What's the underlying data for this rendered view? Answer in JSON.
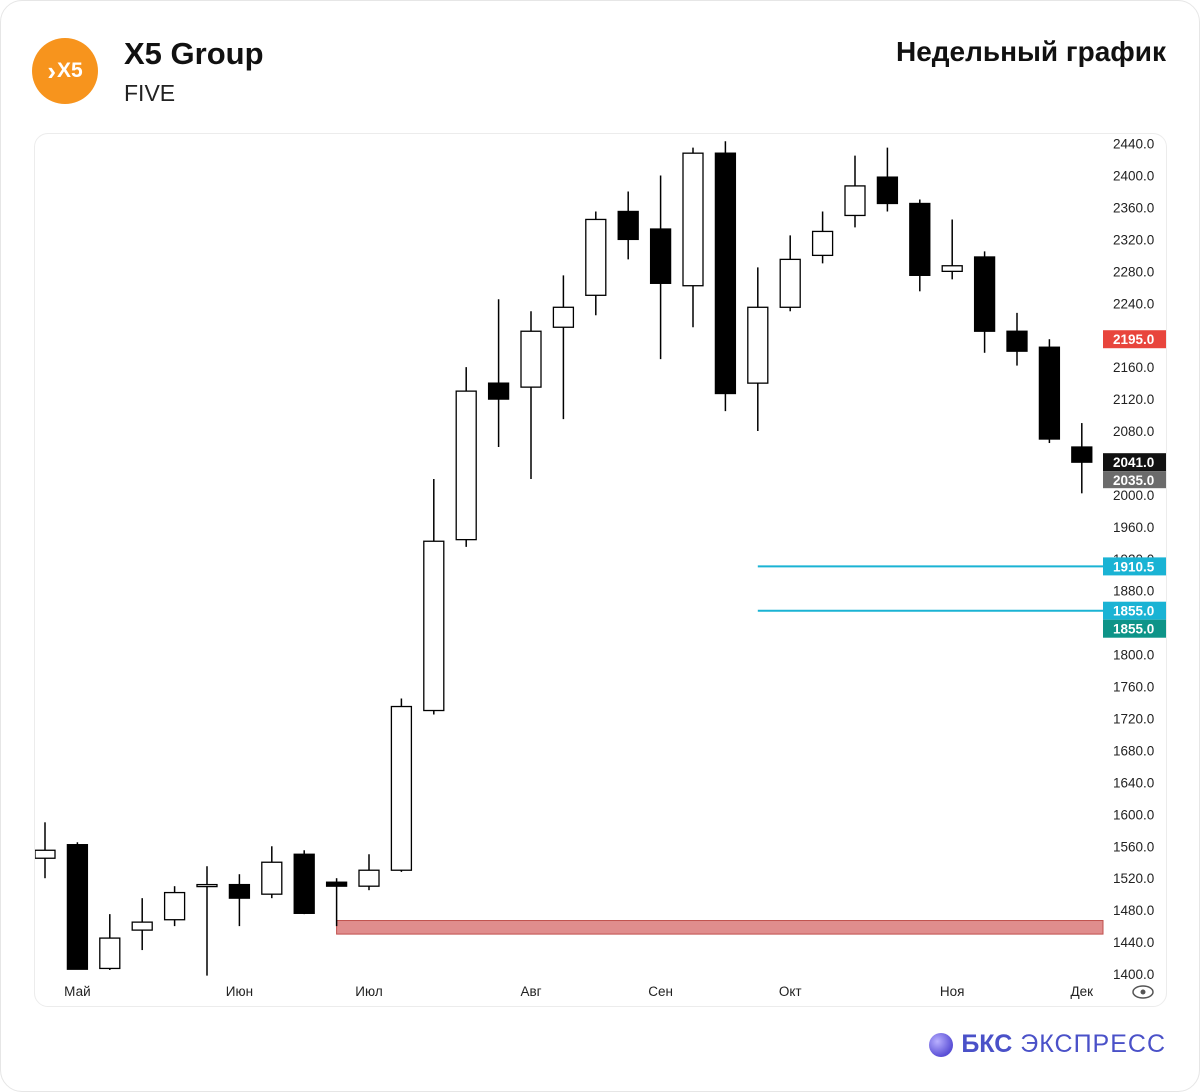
{
  "header": {
    "logo_text": "X5",
    "company": "X5 Group",
    "ticker": "FIVE",
    "chart_title": "Недельный график"
  },
  "footer": {
    "brand_bold": "БКС",
    "brand_rest": "ЭКСПРЕСС",
    "brand_color": "#4a51c8"
  },
  "colors": {
    "logo": "#f7941d",
    "resistance": "#e8453c",
    "level_lines": "#1ab3d4",
    "support_zone": "#e08d8d",
    "current_label": "#111111",
    "prev_label": "#6b6b6b",
    "level_label_teal": "#0e9488"
  },
  "chart_data": {
    "type": "candlestick",
    "title": "Недельный график",
    "y_ticks": [
      2440,
      2400,
      2360,
      2320,
      2280,
      2240,
      2160,
      2120,
      2080,
      2000,
      1960,
      1920,
      1880,
      1800,
      1760,
      1720,
      1680,
      1640,
      1600,
      1560,
      1520,
      1480,
      1440,
      1400
    ],
    "ylim": [
      1385,
      2447
    ],
    "x_labels": [
      {
        "label": "Май",
        "index": 1
      },
      {
        "label": "Июн",
        "index": 6
      },
      {
        "label": "Июл",
        "index": 10
      },
      {
        "label": "Авг",
        "index": 15
      },
      {
        "label": "Сен",
        "index": 19
      },
      {
        "label": "Окт",
        "index": 23
      },
      {
        "label": "Ноя",
        "index": 28
      },
      {
        "label": "Дек",
        "index": 32
      }
    ],
    "candles": [
      {
        "o": 1545,
        "h": 1590,
        "l": 1520,
        "c": 1555
      },
      {
        "o": 1562,
        "h": 1565,
        "l": 1406,
        "c": 1406
      },
      {
        "o": 1407,
        "h": 1475,
        "l": 1405,
        "c": 1445
      },
      {
        "o": 1455,
        "h": 1495,
        "l": 1430,
        "c": 1465
      },
      {
        "o": 1468,
        "h": 1510,
        "l": 1460,
        "c": 1502
      },
      {
        "o": 1510,
        "h": 1535,
        "l": 1398,
        "c": 1512
      },
      {
        "o": 1512,
        "h": 1525,
        "l": 1460,
        "c": 1495
      },
      {
        "o": 1500,
        "h": 1560,
        "l": 1495,
        "c": 1540
      },
      {
        "o": 1550,
        "h": 1555,
        "l": 1475,
        "c": 1476
      },
      {
        "o": 1515,
        "h": 1520,
        "l": 1460,
        "c": 1510
      },
      {
        "o": 1510,
        "h": 1550,
        "l": 1505,
        "c": 1530
      },
      {
        "o": 1530,
        "h": 1745,
        "l": 1528,
        "c": 1735
      },
      {
        "o": 1730,
        "h": 2020,
        "l": 1725,
        "c": 1942
      },
      {
        "o": 1944,
        "h": 2160,
        "l": 1935,
        "c": 2130
      },
      {
        "o": 2140,
        "h": 2245,
        "l": 2060,
        "c": 2120
      },
      {
        "o": 2135,
        "h": 2230,
        "l": 2020,
        "c": 2205
      },
      {
        "o": 2210,
        "h": 2275,
        "l": 2095,
        "c": 2235
      },
      {
        "o": 2250,
        "h": 2355,
        "l": 2225,
        "c": 2345
      },
      {
        "o": 2355,
        "h": 2380,
        "l": 2295,
        "c": 2320
      },
      {
        "o": 2333,
        "h": 2400,
        "l": 2170,
        "c": 2265
      },
      {
        "o": 2262,
        "h": 2435,
        "l": 2210,
        "c": 2428
      },
      {
        "o": 2428,
        "h": 2443,
        "l": 2105,
        "c": 2127
      },
      {
        "o": 2140,
        "h": 2285,
        "l": 2080,
        "c": 2235
      },
      {
        "o": 2235,
        "h": 2325,
        "l": 2230,
        "c": 2295
      },
      {
        "o": 2300,
        "h": 2355,
        "l": 2290,
        "c": 2330
      },
      {
        "o": 2350,
        "h": 2425,
        "l": 2335,
        "c": 2387
      },
      {
        "o": 2398,
        "h": 2435,
        "l": 2355,
        "c": 2365
      },
      {
        "o": 2365,
        "h": 2370,
        "l": 2255,
        "c": 2275
      },
      {
        "o": 2280,
        "h": 2345,
        "l": 2270,
        "c": 2287
      },
      {
        "o": 2298,
        "h": 2305,
        "l": 2178,
        "c": 2205
      },
      {
        "o": 2205,
        "h": 2228,
        "l": 2162,
        "c": 2180
      },
      {
        "o": 2185,
        "h": 2195,
        "l": 2065,
        "c": 2070
      },
      {
        "o": 2060,
        "h": 2090,
        "l": 2002,
        "c": 2041
      }
    ],
    "levels": [
      {
        "value": 1910.5,
        "label": "1910.5"
      },
      {
        "value": 1855.0,
        "label": "1855.0"
      }
    ],
    "support_zone": [
      1450,
      1467
    ],
    "price_labels": {
      "resistance": "2195.0",
      "current": "2041.0",
      "previous": "2035.0",
      "level_alt": "1855.0"
    }
  }
}
